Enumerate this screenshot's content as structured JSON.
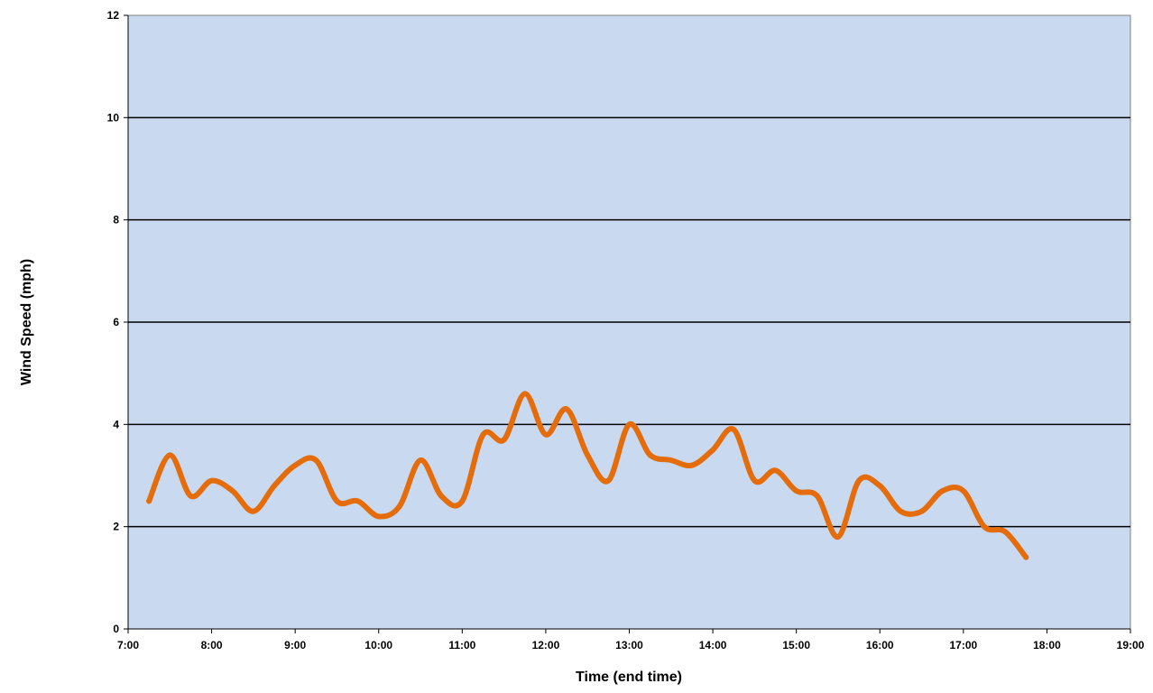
{
  "chart_data": {
    "type": "line",
    "title": "",
    "xlabel": "Time (end time)",
    "ylabel": "Wind Speed (mph)",
    "xlim": [
      "7:00",
      "19:00"
    ],
    "ylim": [
      0,
      12
    ],
    "x_ticks": [
      "7:00",
      "8:00",
      "9:00",
      "10:00",
      "11:00",
      "12:00",
      "13:00",
      "14:00",
      "15:00",
      "16:00",
      "17:00",
      "18:00",
      "19:00"
    ],
    "y_ticks": [
      "0",
      "2",
      "4",
      "6",
      "8",
      "10",
      "12"
    ],
    "grid": "horizontal major gridlines",
    "legend": "none",
    "series": [
      {
        "x": [
          "7:15",
          "7:30",
          "7:45",
          "8:00",
          "8:15",
          "8:30",
          "8:45",
          "9:00",
          "9:15",
          "9:30",
          "9:45",
          "10:00",
          "10:15",
          "10:30",
          "10:45",
          "11:00",
          "11:15",
          "11:30",
          "11:45",
          "12:00",
          "12:15",
          "12:30",
          "12:45",
          "13:00",
          "13:15",
          "13:30",
          "13:45",
          "14:00",
          "14:15",
          "14:30",
          "14:45",
          "15:00",
          "15:15",
          "15:30",
          "15:45",
          "16:00",
          "16:15",
          "16:30",
          "16:45",
          "17:00",
          "17:15",
          "17:30",
          "17:45"
        ],
        "values": [
          2.5,
          3.4,
          2.6,
          2.9,
          2.7,
          2.3,
          2.8,
          3.2,
          3.3,
          2.5,
          2.5,
          2.2,
          2.4,
          3.3,
          2.6,
          2.5,
          3.8,
          3.7,
          4.6,
          3.8,
          4.3,
          3.4,
          2.9,
          4.0,
          3.4,
          3.3,
          3.2,
          3.5,
          3.9,
          2.9,
          3.1,
          2.7,
          2.6,
          1.8,
          2.9,
          2.8,
          2.3,
          2.3,
          2.7,
          2.7,
          2.0,
          1.9,
          1.4
        ]
      }
    ],
    "colors": {
      "plot_area": "#c8d9f0",
      "line": "#e46c0a",
      "gridlines": "#000000"
    }
  }
}
